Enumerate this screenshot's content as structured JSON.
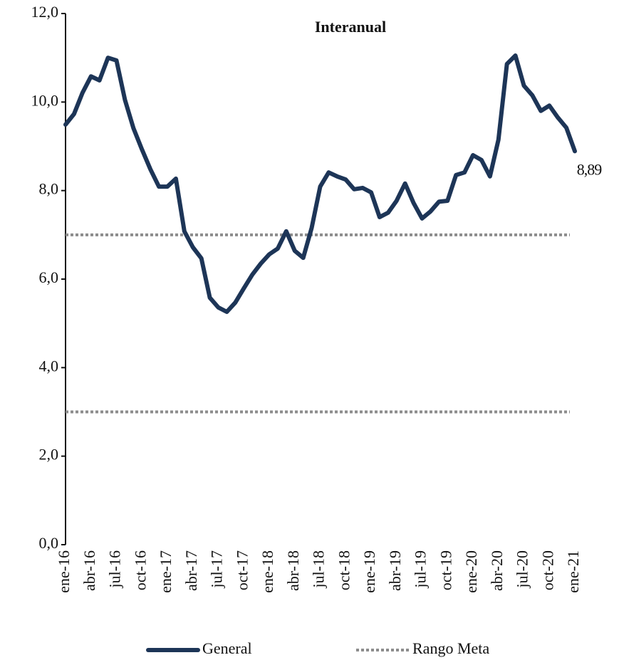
{
  "chart_data": {
    "type": "line",
    "title": "Interanual",
    "categories": [
      "ene-16",
      null,
      null,
      "abr-16",
      null,
      null,
      "jul-16",
      null,
      null,
      "oct-16",
      null,
      null,
      "ene-17",
      null,
      null,
      "abr-17",
      null,
      null,
      "jul-17",
      null,
      null,
      "oct-17",
      null,
      null,
      "ene-18",
      null,
      null,
      "abr-18",
      null,
      null,
      "jul-18",
      null,
      null,
      "oct-18",
      null,
      null,
      "ene-19",
      null,
      null,
      "abr-19",
      null,
      null,
      "jul-19",
      null,
      null,
      "oct-19",
      null,
      null,
      "ene-20",
      null,
      null,
      "abr-20",
      null,
      null,
      "jul-20",
      null,
      null,
      "oct-20",
      null,
      null,
      "ene-21"
    ],
    "series": [
      {
        "name": "General",
        "color": "#1d3557",
        "values": [
          9.49,
          9.73,
          10.21,
          10.58,
          10.49,
          11.0,
          10.94,
          10.05,
          9.41,
          8.93,
          8.48,
          8.09,
          8.09,
          8.27,
          7.08,
          6.72,
          6.47,
          5.58,
          5.36,
          5.26,
          5.47,
          5.79,
          6.1,
          6.35,
          6.56,
          6.69,
          7.08,
          6.64,
          6.48,
          7.16,
          8.09,
          8.41,
          8.32,
          8.25,
          8.03,
          8.06,
          7.96,
          7.4,
          7.5,
          7.77,
          8.16,
          7.72,
          7.37,
          7.53,
          7.75,
          7.77,
          8.35,
          8.41,
          8.8,
          8.69,
          8.32,
          9.15,
          10.86,
          11.05,
          10.37,
          10.15,
          9.8,
          9.92,
          9.65,
          9.42,
          8.89
        ],
        "value_labels": [
          null,
          null,
          null,
          null,
          null,
          null,
          null,
          null,
          null,
          null,
          null,
          null,
          null,
          null,
          null,
          null,
          null,
          null,
          null,
          null,
          null,
          null,
          null,
          null,
          null,
          null,
          null,
          null,
          null,
          null,
          null,
          null,
          null,
          null,
          null,
          null,
          null,
          null,
          null,
          null,
          null,
          null,
          null,
          null,
          null,
          null,
          null,
          null,
          null,
          null,
          null,
          null,
          null,
          null,
          null,
          null,
          null,
          null,
          null,
          null,
          "8,89"
        ]
      }
    ],
    "reference_lines": {
      "name": "Rango Meta",
      "color": "#8c8c8c",
      "values": [
        7,
        3
      ]
    },
    "ylim": [
      0,
      12
    ],
    "yticks": [
      {
        "value": 0,
        "label": "0,0"
      },
      {
        "value": 2,
        "label": "2,0"
      },
      {
        "value": 4,
        "label": "4,0"
      },
      {
        "value": 6,
        "label": "6,0"
      },
      {
        "value": 8,
        "label": "8,0"
      },
      {
        "value": 10,
        "label": "10,0"
      },
      {
        "value": 12,
        "label": "12,0"
      }
    ],
    "legend": "bottom"
  }
}
